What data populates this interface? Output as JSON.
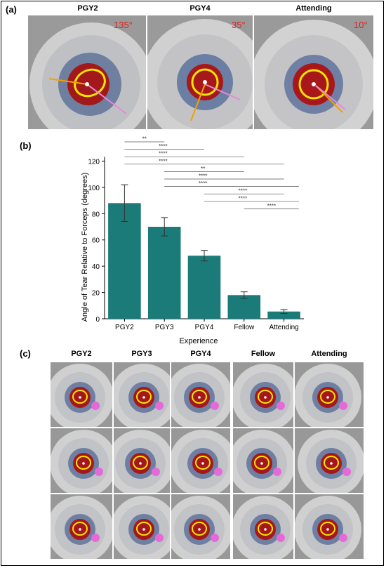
{
  "panels": {
    "a": {
      "label": "(a)"
    },
    "b": {
      "label": "(b)"
    },
    "c": {
      "label": "(c)"
    }
  },
  "panel_a": {
    "columns": [
      {
        "title": "PGY2",
        "angle": "135°"
      },
      {
        "title": "PGY4",
        "angle": "35°"
      },
      {
        "title": "Attending",
        "angle": "10°"
      }
    ]
  },
  "panel_c": {
    "columns": [
      "PGY2",
      "PGY3",
      "PGY4",
      "Fellow",
      "Attending"
    ]
  },
  "chart_data": {
    "type": "bar",
    "categories": [
      "PGY2",
      "PGY3",
      "PGY4",
      "Fellow",
      "Attending"
    ],
    "values": [
      88,
      70,
      48,
      18,
      5.5
    ],
    "errors": [
      14,
      7,
      4,
      2.5,
      1.5
    ],
    "xlabel": "Experience",
    "ylabel": "Angle of Tear Relative to Forceps (degrees)",
    "ylim": [
      0,
      140
    ],
    "yticks": [
      0,
      20,
      40,
      60,
      80,
      100,
      120
    ],
    "bar_color": "#1b7b78",
    "significance": [
      {
        "from": 0,
        "to": 1,
        "label": "**"
      },
      {
        "from": 0,
        "to": 2,
        "label": "****"
      },
      {
        "from": 0,
        "to": 3,
        "label": "****"
      },
      {
        "from": 0,
        "to": 4,
        "label": "****"
      },
      {
        "from": 1,
        "to": 3,
        "label": "**"
      },
      {
        "from": 1,
        "to": 4,
        "label": "****"
      },
      {
        "from": 1,
        "to": 5,
        "label": "****"
      },
      {
        "from": 2,
        "to": 4,
        "label": "****"
      },
      {
        "from": 2,
        "to": 5,
        "label": "****"
      },
      {
        "from": 3,
        "to": 5,
        "label": "****"
      }
    ]
  }
}
